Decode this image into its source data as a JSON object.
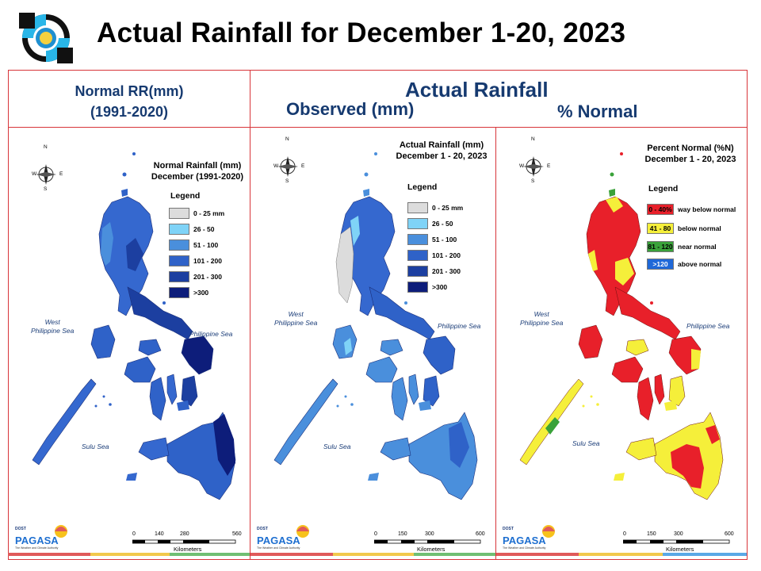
{
  "title": "Actual Rainfall for December 1-20, 2023",
  "headers": {
    "left_line1": "Normal RR(mm)",
    "left_line2": "(1991-2020)",
    "actual": "Actual Rainfall",
    "observed": "Observed (mm)",
    "percent": "% Normal"
  },
  "maps": [
    {
      "title_line1": "Normal Rainfall (mm)",
      "title_line2": "December (1991-2020)",
      "legend_title": "Legend",
      "legend": [
        {
          "label": "0 - 25 mm",
          "color": "#dcdcdc"
        },
        {
          "label": "26 - 50",
          "color": "#7fd3f7"
        },
        {
          "label": "51 - 100",
          "color": "#4a8fdc"
        },
        {
          "label": "101 - 200",
          "color": "#2f62c8"
        },
        {
          "label": "201 - 300",
          "color": "#1c3fa0"
        },
        {
          "label": ">300",
          "color": "#0d1d7a"
        }
      ],
      "seas": {
        "west": "West\nPhilippine Sea",
        "phil": "Philippine Sea",
        "sulu": "Sulu Sea"
      },
      "scale_ticks": [
        "0",
        "140",
        "280",
        "560"
      ],
      "scale_unit": "Kilometers"
    },
    {
      "title_line1": "Actual Rainfall (mm)",
      "title_line2": "December 1 - 20, 2023",
      "legend_title": "Legend",
      "legend": [
        {
          "label": "0 - 25 mm",
          "color": "#dcdcdc"
        },
        {
          "label": "26 - 50",
          "color": "#7fd3f7"
        },
        {
          "label": "51 - 100",
          "color": "#4a8fdc"
        },
        {
          "label": "101 - 200",
          "color": "#2f62c8"
        },
        {
          "label": "201 - 300",
          "color": "#1c3fa0"
        },
        {
          "label": ">300",
          "color": "#0d1d7a"
        }
      ],
      "seas": {
        "west": "West\nPhilippine Sea",
        "phil": "Philippine Sea",
        "sulu": "Sulu Sea"
      },
      "scale_ticks": [
        "0",
        "150",
        "300",
        "600"
      ],
      "scale_unit": "Kilometers"
    },
    {
      "title_line1": "Percent Normal (%N)",
      "title_line2": "December 1 - 20, 2023",
      "legend_title": "Legend",
      "legend": [
        {
          "swatch": "0 - 40%",
          "label": "way below normal",
          "color": "#e8202a"
        },
        {
          "swatch": "41 - 80",
          "label": "below normal",
          "color": "#f5ef3a"
        },
        {
          "swatch": "81 - 120",
          "label": "near normal",
          "color": "#3aa23a"
        },
        {
          "swatch": ">120",
          "label": "above normal",
          "color": "#1f68d8"
        }
      ],
      "seas": {
        "west": "West\nPhilippine Sea",
        "phil": "Philippine Sea",
        "sulu": "Sulu Sea"
      },
      "scale_ticks": [
        "0",
        "150",
        "300",
        "600"
      ],
      "scale_unit": "Kilometers"
    }
  ],
  "compass": {
    "n": "N",
    "s": "S",
    "e": "E",
    "w": "W"
  },
  "brand": {
    "small": "DOST",
    "name": "PAGASA",
    "tagline": "The Weather and Climate Authority"
  },
  "colors": {
    "frame": "#d8353a",
    "header_text": "#163a70",
    "stripe_red": "#e05a5a",
    "stripe_yellow": "#f2c94c",
    "stripe_green": "#6fbf73",
    "stripe_blue": "#5aa9e6"
  }
}
